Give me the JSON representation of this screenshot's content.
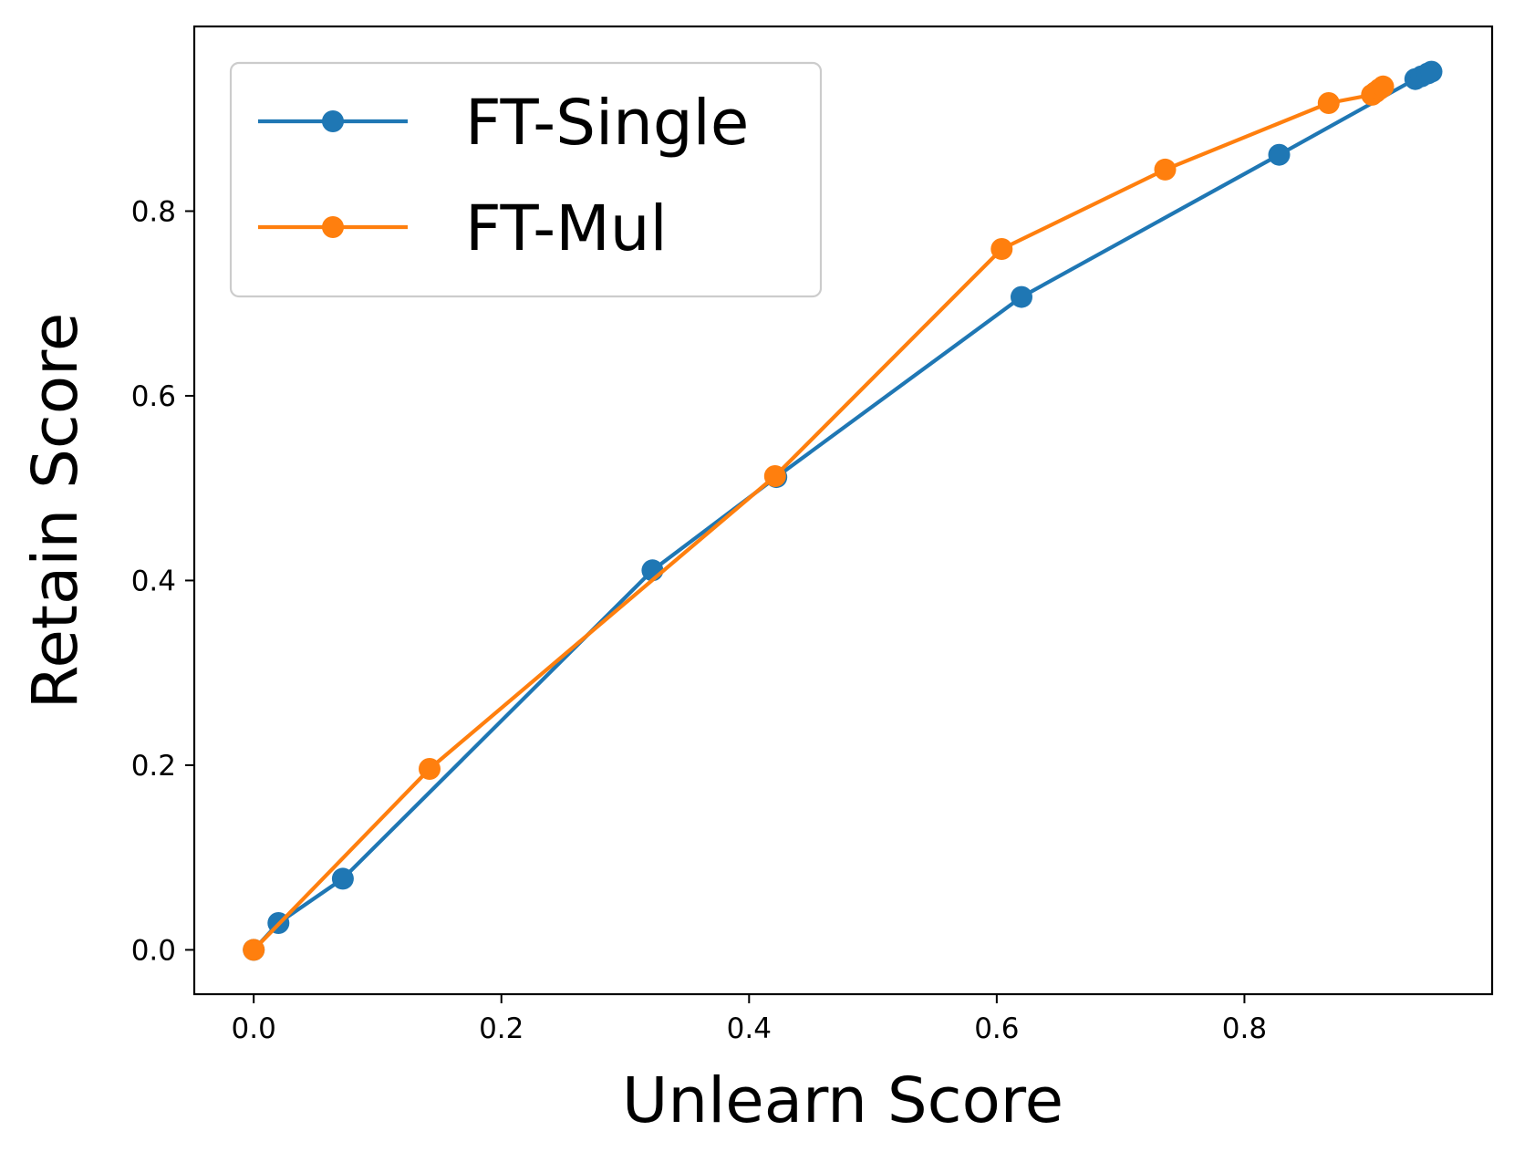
{
  "chart_data": {
    "type": "line",
    "title": "",
    "xlabel": "Unlearn Score",
    "ylabel": "Retain Score",
    "xlim": [
      -0.048,
      1.0
    ],
    "ylim": [
      -0.048,
      1.0
    ],
    "x_ticks": [
      "0.0",
      "0.2",
      "0.4",
      "0.6",
      "0.8"
    ],
    "y_ticks": [
      "0.0",
      "0.2",
      "0.4",
      "0.6",
      "0.8"
    ],
    "grid": false,
    "legend_position": "top-left",
    "markers": "circle",
    "series": [
      {
        "name": "FT-Single",
        "color": "#1f77b4",
        "x": [
          0.0,
          0.02,
          0.072,
          0.322,
          0.422,
          0.62,
          0.828,
          0.938,
          0.943,
          0.948,
          0.951
        ],
        "y": [
          0.0,
          0.029,
          0.077,
          0.411,
          0.512,
          0.707,
          0.861,
          0.943,
          0.946,
          0.949,
          0.951
        ]
      },
      {
        "name": "FT-Mul",
        "color": "#ff7f0e",
        "x": [
          0.0,
          0.142,
          0.421,
          0.604,
          0.736,
          0.868,
          0.903,
          0.906,
          0.909,
          0.912
        ],
        "y": [
          0.0,
          0.196,
          0.513,
          0.759,
          0.845,
          0.917,
          0.926,
          0.929,
          0.932,
          0.935
        ]
      }
    ]
  }
}
